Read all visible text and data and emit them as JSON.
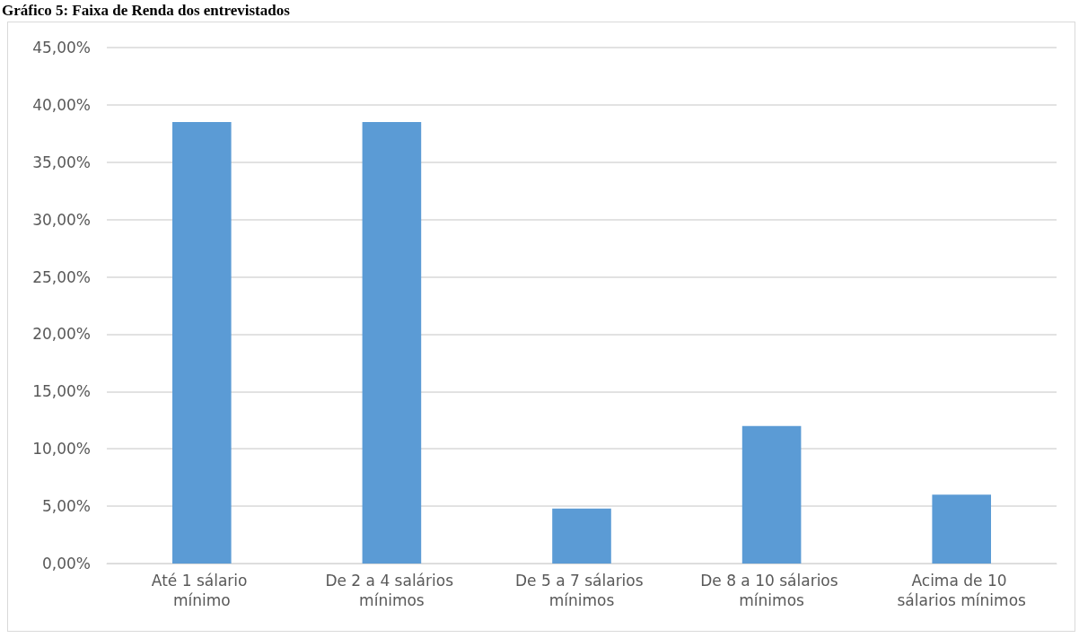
{
  "chart_data": {
    "type": "bar",
    "title": "Gráfico 5: Faixa de Renda dos entrevistados",
    "categories": [
      "Até 1 sálario mínimo",
      "De 2 a 4 salários mínimos",
      "De 5 a 7 sálarios mínimos",
      "De 8 a 10 sálarios mínimos",
      "Acima de 10 sálarios mínimos"
    ],
    "values": [
      38.5,
      38.5,
      4.8,
      12.0,
      6.0
    ],
    "color": "#5b9bd5",
    "ylim": [
      0,
      45
    ],
    "yticks": [
      {
        "value": 0,
        "label": "0,00%"
      },
      {
        "value": 5,
        "label": "5,00%"
      },
      {
        "value": 10,
        "label": "10,00%"
      },
      {
        "value": 15,
        "label": "15,00%"
      },
      {
        "value": 20,
        "label": "20,00%"
      },
      {
        "value": 25,
        "label": "25,00%"
      },
      {
        "value": 30,
        "label": "30,00%"
      },
      {
        "value": 35,
        "label": "35,00%"
      },
      {
        "value": 40,
        "label": "40,00%"
      },
      {
        "value": 45,
        "label": "45,00%"
      }
    ],
    "grid": "y"
  }
}
